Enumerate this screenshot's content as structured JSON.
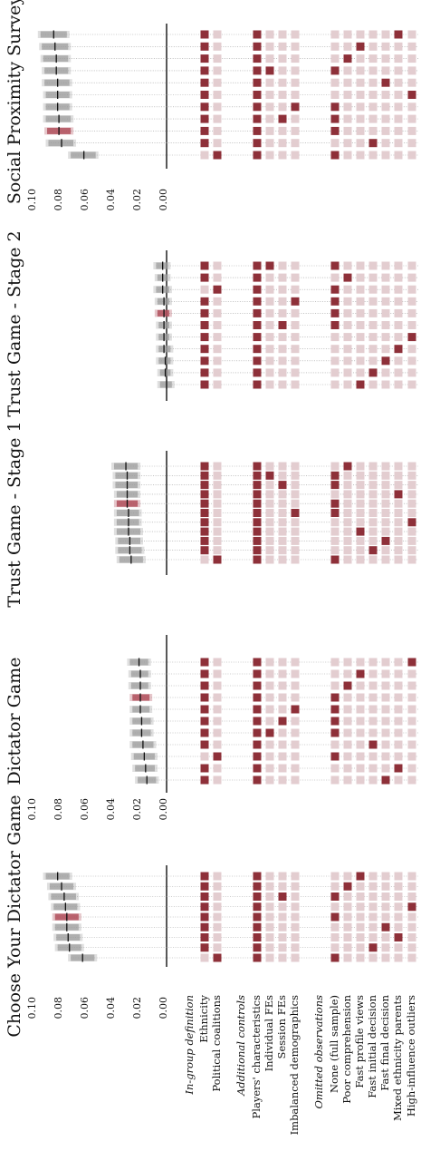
{
  "chart_data": {
    "type": "specification-curve",
    "orientation": "rotated-90-ccw",
    "axis": {
      "ylim": [
        0,
        0.1
      ],
      "ticks": [
        "0.10",
        "0.08",
        "0.06",
        "0.04",
        "0.02",
        "0.00"
      ]
    },
    "colors": {
      "selected": "#8e3039",
      "unselected": "#e3cdd0",
      "estimate_band": "#9a9a9a",
      "highlight": "#b0505d",
      "gridline": "#9a9a9a"
    },
    "groups": [
      {
        "title": "In-group definition",
        "items": [
          {
            "key": "eth",
            "label": "Ethnicity"
          },
          {
            "key": "pol",
            "label": "Political coalitions"
          }
        ]
      },
      {
        "title": "Additional controls",
        "items": [
          {
            "key": "pc",
            "label": "Players' characteristics"
          },
          {
            "key": "ife",
            "label": "Individual FEs"
          },
          {
            "key": "sfe",
            "label": "Session FEs"
          },
          {
            "key": "imb",
            "label": "Imbalanced demographics"
          }
        ]
      },
      {
        "title": "Omitted observations",
        "items": [
          {
            "key": "none",
            "label": "None (full sample)"
          },
          {
            "key": "poor",
            "label": "Poor comprehension"
          },
          {
            "key": "fpv",
            "label": "Fast profile views"
          },
          {
            "key": "fid",
            "label": "Fast initial decision"
          },
          {
            "key": "ffd",
            "label": "Fast final decision"
          },
          {
            "key": "mep",
            "label": "Mixed ethnicity parents"
          },
          {
            "key": "hio",
            "label": "High-influence outliers"
          }
        ]
      }
    ],
    "panels": [
      {
        "title": "Choose Your Dictator Game",
        "show_axis_ticks": true,
        "specs": [
          {
            "est": 0.083,
            "lo": 0.074,
            "hi": 0.092,
            "sel": [
              "eth",
              "pc",
              "fpv"
            ]
          },
          {
            "est": 0.08,
            "lo": 0.071,
            "hi": 0.089,
            "sel": [
              "eth",
              "pc",
              "poor"
            ]
          },
          {
            "est": 0.078,
            "lo": 0.069,
            "hi": 0.088,
            "sel": [
              "eth",
              "pc",
              "sfe",
              "none"
            ]
          },
          {
            "est": 0.077,
            "lo": 0.068,
            "hi": 0.086,
            "sel": [
              "eth",
              "pc",
              "hio"
            ]
          },
          {
            "est": 0.076,
            "lo": 0.067,
            "hi": 0.085,
            "sel": [
              "eth",
              "pc",
              "none"
            ],
            "highlight": true
          },
          {
            "est": 0.076,
            "lo": 0.067,
            "hi": 0.085,
            "sel": [
              "eth",
              "pc",
              "ffd"
            ]
          },
          {
            "est": 0.075,
            "lo": 0.066,
            "hi": 0.084,
            "sel": [
              "eth",
              "pc",
              "mep"
            ]
          },
          {
            "est": 0.074,
            "lo": 0.065,
            "hi": 0.083,
            "sel": [
              "eth",
              "pc",
              "fid"
            ]
          },
          {
            "est": 0.064,
            "lo": 0.055,
            "hi": 0.073,
            "sel": [
              "pol",
              "pc",
              "none"
            ]
          }
        ]
      },
      {
        "title": "Dictator Game",
        "show_axis_ticks": true,
        "specs": [
          {
            "est": 0.021,
            "lo": 0.014,
            "hi": 0.028,
            "sel": [
              "eth",
              "pc",
              "hio"
            ]
          },
          {
            "est": 0.02,
            "lo": 0.014,
            "hi": 0.027,
            "sel": [
              "eth",
              "pc",
              "fpv"
            ]
          },
          {
            "est": 0.02,
            "lo": 0.014,
            "hi": 0.027,
            "sel": [
              "eth",
              "pc",
              "poor"
            ]
          },
          {
            "est": 0.02,
            "lo": 0.013,
            "hi": 0.026,
            "sel": [
              "eth",
              "pc",
              "none"
            ],
            "highlight": true
          },
          {
            "est": 0.02,
            "lo": 0.013,
            "hi": 0.026,
            "sel": [
              "eth",
              "pc",
              "imb",
              "none"
            ]
          },
          {
            "est": 0.019,
            "lo": 0.012,
            "hi": 0.026,
            "sel": [
              "eth",
              "pc",
              "sfe",
              "none"
            ]
          },
          {
            "est": 0.019,
            "lo": 0.012,
            "hi": 0.026,
            "sel": [
              "eth",
              "pc",
              "ife",
              "none"
            ]
          },
          {
            "est": 0.018,
            "lo": 0.01,
            "hi": 0.026,
            "sel": [
              "eth",
              "pc",
              "fid"
            ]
          },
          {
            "est": 0.017,
            "lo": 0.009,
            "hi": 0.025,
            "sel": [
              "pol",
              "pc",
              "none"
            ]
          },
          {
            "est": 0.016,
            "lo": 0.009,
            "hi": 0.024,
            "sel": [
              "eth",
              "pc",
              "mep"
            ]
          },
          {
            "est": 0.015,
            "lo": 0.008,
            "hi": 0.022,
            "sel": [
              "eth",
              "pc",
              "ffd"
            ]
          }
        ]
      },
      {
        "title": "Trust Game - Stage 1",
        "show_axis_ticks": false,
        "specs": [
          {
            "est": 0.031,
            "lo": 0.022,
            "hi": 0.04,
            "sel": [
              "eth",
              "pc",
              "poor"
            ]
          },
          {
            "est": 0.03,
            "lo": 0.022,
            "hi": 0.039,
            "sel": [
              "eth",
              "pc",
              "ife",
              "none"
            ]
          },
          {
            "est": 0.03,
            "lo": 0.022,
            "hi": 0.039,
            "sel": [
              "eth",
              "pc",
              "sfe",
              "none"
            ]
          },
          {
            "est": 0.03,
            "lo": 0.022,
            "hi": 0.038,
            "sel": [
              "eth",
              "pc",
              "mep"
            ]
          },
          {
            "est": 0.03,
            "lo": 0.022,
            "hi": 0.038,
            "sel": [
              "eth",
              "pc",
              "none"
            ],
            "highlight": true
          },
          {
            "est": 0.029,
            "lo": 0.021,
            "hi": 0.038,
            "sel": [
              "eth",
              "pc",
              "imb",
              "none"
            ]
          },
          {
            "est": 0.029,
            "lo": 0.021,
            "hi": 0.038,
            "sel": [
              "eth",
              "pc",
              "hio"
            ]
          },
          {
            "est": 0.029,
            "lo": 0.02,
            "hi": 0.038,
            "sel": [
              "eth",
              "pc",
              "fpv"
            ]
          },
          {
            "est": 0.028,
            "lo": 0.02,
            "hi": 0.037,
            "sel": [
              "eth",
              "pc",
              "ffd"
            ]
          },
          {
            "est": 0.028,
            "lo": 0.019,
            "hi": 0.037,
            "sel": [
              "eth",
              "pc",
              "fid"
            ]
          },
          {
            "est": 0.027,
            "lo": 0.018,
            "hi": 0.036,
            "sel": [
              "pol",
              "pc",
              "none"
            ]
          }
        ]
      },
      {
        "title": "Trust Game - Stage 2",
        "show_axis_ticks": false,
        "specs": [
          {
            "est": 0.003,
            "lo": -0.001,
            "hi": 0.008,
            "sel": [
              "eth",
              "pc",
              "ife",
              "none"
            ]
          },
          {
            "est": 0.003,
            "lo": -0.001,
            "hi": 0.007,
            "sel": [
              "eth",
              "pc",
              "poor"
            ]
          },
          {
            "est": 0.003,
            "lo": -0.002,
            "hi": 0.008,
            "sel": [
              "pol",
              "pc",
              "none"
            ]
          },
          {
            "est": 0.002,
            "lo": -0.002,
            "hi": 0.007,
            "sel": [
              "eth",
              "pc",
              "imb",
              "none"
            ]
          },
          {
            "est": 0.002,
            "lo": -0.002,
            "hi": 0.007,
            "sel": [
              "eth",
              "pc",
              "none"
            ],
            "highlight": true
          },
          {
            "est": 0.002,
            "lo": -0.002,
            "hi": 0.006,
            "sel": [
              "eth",
              "pc",
              "sfe",
              "none"
            ]
          },
          {
            "est": 0.002,
            "lo": -0.002,
            "hi": 0.006,
            "sel": [
              "eth",
              "pc",
              "hio"
            ]
          },
          {
            "est": 0.002,
            "lo": -0.003,
            "hi": 0.006,
            "sel": [
              "eth",
              "pc",
              "mep"
            ]
          },
          {
            "est": 0.001,
            "lo": -0.003,
            "hi": 0.006,
            "sel": [
              "eth",
              "pc",
              "ffd"
            ]
          },
          {
            "est": 0.001,
            "lo": -0.003,
            "hi": 0.005,
            "sel": [
              "eth",
              "pc",
              "fid"
            ]
          },
          {
            "est": 0.0,
            "lo": -0.004,
            "hi": 0.005,
            "sel": [
              "eth",
              "pc",
              "fpv"
            ]
          }
        ]
      },
      {
        "title": "Social Proximity Survey",
        "show_axis_ticks": true,
        "specs": [
          {
            "est": 0.086,
            "lo": 0.076,
            "hi": 0.096,
            "sel": [
              "eth",
              "pc",
              "mep"
            ]
          },
          {
            "est": 0.085,
            "lo": 0.075,
            "hi": 0.095,
            "sel": [
              "eth",
              "pc",
              "fpv"
            ]
          },
          {
            "est": 0.084,
            "lo": 0.075,
            "hi": 0.094,
            "sel": [
              "eth",
              "pc",
              "poor"
            ]
          },
          {
            "est": 0.084,
            "lo": 0.075,
            "hi": 0.093,
            "sel": [
              "eth",
              "pc",
              "ife",
              "none"
            ]
          },
          {
            "est": 0.083,
            "lo": 0.074,
            "hi": 0.093,
            "sel": [
              "eth",
              "pc",
              "ffd"
            ]
          },
          {
            "est": 0.083,
            "lo": 0.074,
            "hi": 0.092,
            "sel": [
              "eth",
              "pc",
              "hio"
            ]
          },
          {
            "est": 0.083,
            "lo": 0.074,
            "hi": 0.092,
            "sel": [
              "eth",
              "pc",
              "imb",
              "none"
            ]
          },
          {
            "est": 0.082,
            "lo": 0.073,
            "hi": 0.092,
            "sel": [
              "eth",
              "pc",
              "sfe",
              "none"
            ]
          },
          {
            "est": 0.082,
            "lo": 0.073,
            "hi": 0.091,
            "sel": [
              "eth",
              "pc",
              "none"
            ],
            "highlight": true
          },
          {
            "est": 0.08,
            "lo": 0.071,
            "hi": 0.09,
            "sel": [
              "eth",
              "pc",
              "fid"
            ]
          },
          {
            "est": 0.063,
            "lo": 0.054,
            "hi": 0.073,
            "sel": [
              "pol",
              "pc",
              "none"
            ]
          }
        ]
      }
    ]
  }
}
